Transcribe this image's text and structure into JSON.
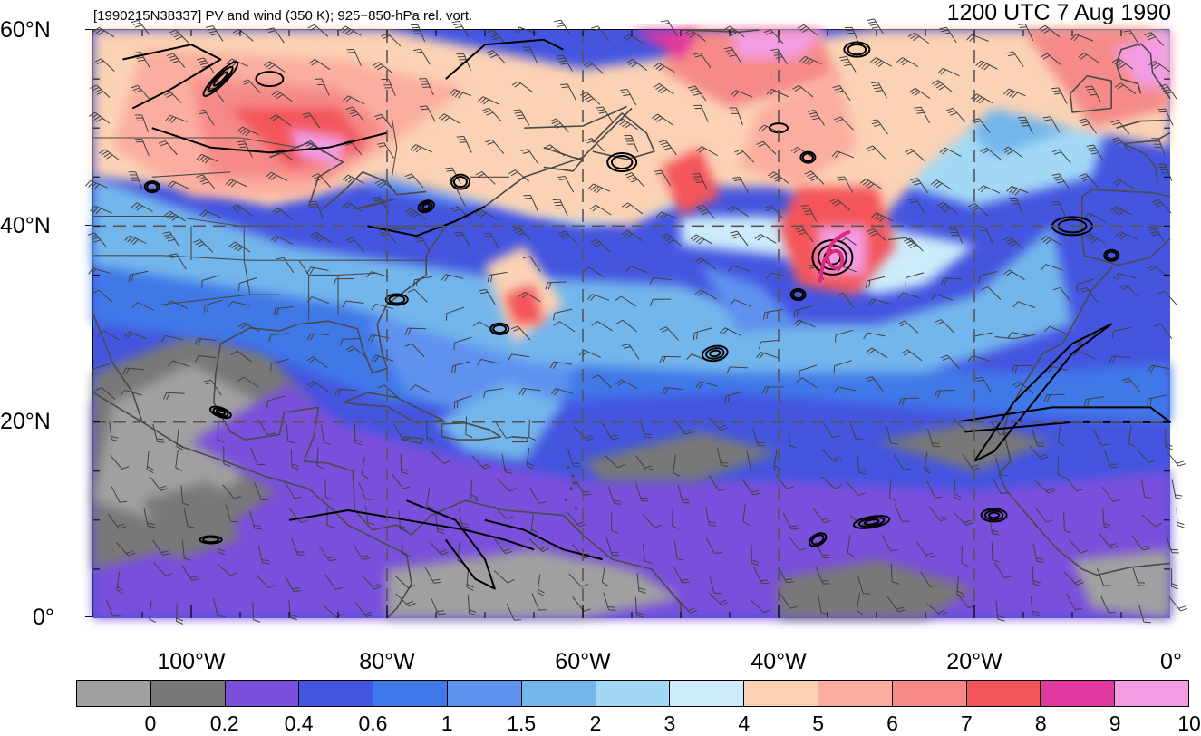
{
  "header": {
    "subtitle": "[1990215N38337] PV and wind (350 K); 925−850-hPa rel. vort.",
    "time_title": "1200 UTC 7 Aug 1990"
  },
  "axes": {
    "lat_labels": [
      "60°N",
      "40°N",
      "20°N",
      "0°"
    ],
    "lon_labels": [
      "100°W",
      "80°W",
      "60°W",
      "40°W",
      "20°W",
      "0°"
    ]
  },
  "colorbar": {
    "labels": [
      "0",
      "0.2",
      "0.4",
      "0.6",
      "1",
      "1.5",
      "2",
      "3",
      "4",
      "5",
      "6",
      "7",
      "8",
      "9",
      "10"
    ],
    "colors": [
      "#a0a0a0",
      "#787878",
      "#7a4fdc",
      "#4455e0",
      "#3f78e8",
      "#5f92ef",
      "#73b6ec",
      "#a3d8f5",
      "#cdebfa",
      "#fbd2b4",
      "#fbae9f",
      "#f58a88",
      "#f3545a",
      "#e0399f",
      "#f39ce3"
    ]
  },
  "map_colors": {
    "land_outline": "#4a4a4a",
    "grid_line": "#555555",
    "vorticity_contour": "#000000",
    "track": "#e0297c"
  },
  "features": {
    "tc_center": {
      "lon": -34.5,
      "lat": 36.8
    }
  }
}
